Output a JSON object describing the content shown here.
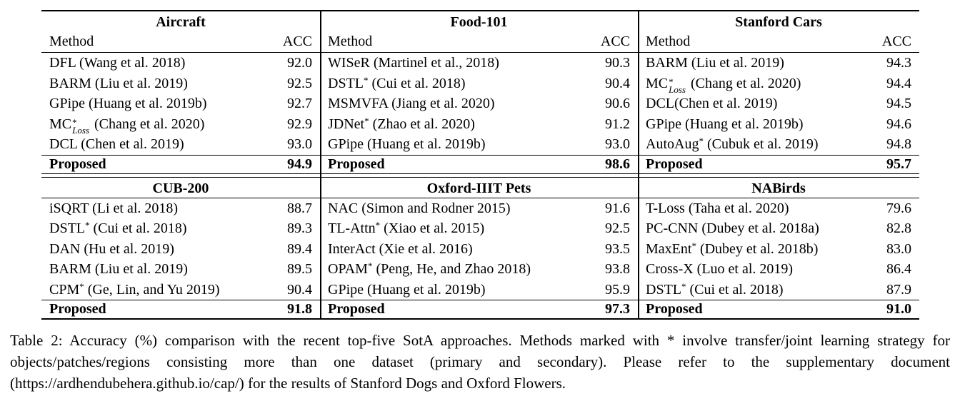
{
  "table": {
    "halves": [
      {
        "has_colheads": true,
        "panels": [
          {
            "dataset": "Aircraft",
            "col_method": "Method",
            "col_acc": "ACC",
            "rows": [
              {
                "method": "DFL (Wang et al. 2018)",
                "acc": "92.0"
              },
              {
                "method": "BARM (Liu et al. 2019)",
                "acc": "92.5"
              },
              {
                "method": "GPipe (Huang et al. 2019b)",
                "acc": "92.7"
              },
              {
                "method": "MC^{*}_{Loss} (Chang et al. 2020)",
                "acc": "92.9"
              },
              {
                "method": "DCL (Chen et al. 2019)",
                "acc": "93.0"
              }
            ],
            "proposed": {
              "label": "Proposed",
              "acc": "94.9"
            }
          },
          {
            "dataset": "Food-101",
            "col_method": "Method",
            "col_acc": "ACC",
            "rows": [
              {
                "method": "WISeR (Martinel et al., 2018)",
                "acc": "90.3"
              },
              {
                "method": "DSTL^{*} (Cui et al. 2018)",
                "acc": "90.4"
              },
              {
                "method": "MSMVFA (Jiang et al. 2020)",
                "acc": "90.6"
              },
              {
                "method": "JDNet^{*} (Zhao et al. 2020)",
                "acc": "91.2"
              },
              {
                "method": "GPipe (Huang et al. 2019b)",
                "acc": "93.0"
              }
            ],
            "proposed": {
              "label": "Proposed",
              "acc": "98.6"
            }
          },
          {
            "dataset": "Stanford Cars",
            "col_method": "Method",
            "col_acc": "ACC",
            "rows": [
              {
                "method": "BARM (Liu et al. 2019)",
                "acc": "94.3"
              },
              {
                "method": "MC^{*}_{Loss} (Chang et al. 2020)",
                "acc": "94.4"
              },
              {
                "method": "DCL(Chen et al. 2019)",
                "acc": "94.5"
              },
              {
                "method": "GPipe (Huang et al. 2019b)",
                "acc": "94.6"
              },
              {
                "method": "AutoAug^{*} (Cubuk et al. 2019)",
                "acc": "94.8"
              }
            ],
            "proposed": {
              "label": "Proposed",
              "acc": "95.7"
            }
          }
        ]
      },
      {
        "has_colheads": false,
        "panels": [
          {
            "dataset": "CUB-200",
            "rows": [
              {
                "method": "iSQRT (Li et al. 2018)",
                "acc": "88.7"
              },
              {
                "method": "DSTL^{*} (Cui et al. 2018)",
                "acc": "89.3"
              },
              {
                "method": "DAN (Hu et al. 2019)",
                "acc": "89.4"
              },
              {
                "method": "BARM (Liu et al. 2019)",
                "acc": "89.5"
              },
              {
                "method": "CPM^{*} (Ge, Lin, and Yu 2019)",
                "acc": "90.4"
              }
            ],
            "proposed": {
              "label": "Proposed",
              "acc": "91.8"
            }
          },
          {
            "dataset": "Oxford-IIIT Pets",
            "rows": [
              {
                "method": "NAC (Simon and Rodner 2015)",
                "acc": "91.6"
              },
              {
                "method": "TL-Attn^{*} (Xiao et al. 2015)",
                "acc": "92.5"
              },
              {
                "method": "InterAct (Xie et al. 2016)",
                "acc": "93.5"
              },
              {
                "method": "OPAM^{*} (Peng, He, and Zhao 2018)",
                "acc": "93.8"
              },
              {
                "method": "GPipe (Huang et al. 2019b)",
                "acc": "95.9"
              }
            ],
            "proposed": {
              "label": "Proposed",
              "acc": "97.3"
            }
          },
          {
            "dataset": "NABirds",
            "rows": [
              {
                "method": "T-Loss (Taha et al. 2020)",
                "acc": "79.6"
              },
              {
                "method": "PC-CNN (Dubey et al. 2018a)",
                "acc": "82.8"
              },
              {
                "method": "MaxEnt^{*} (Dubey et al. 2018b)",
                "acc": "83.0"
              },
              {
                "method": "Cross-X (Luo et al. 2019)",
                "acc": "86.4"
              },
              {
                "method": "DSTL^{*} (Cui et al. 2018)",
                "acc": "87.9"
              }
            ],
            "proposed": {
              "label": "Proposed",
              "acc": "91.0"
            }
          }
        ]
      }
    ]
  },
  "caption": "Table 2: Accuracy (%) comparison with the recent top-five SotA approaches. Methods marked with * involve transfer/joint learning strategy for objects/patches/regions consisting more than one dataset (primary and secondary). Please refer to the supplementary document (https://ardhendubehera.github.io/cap/) for the results of Stanford Dogs and Oxford Flowers."
}
